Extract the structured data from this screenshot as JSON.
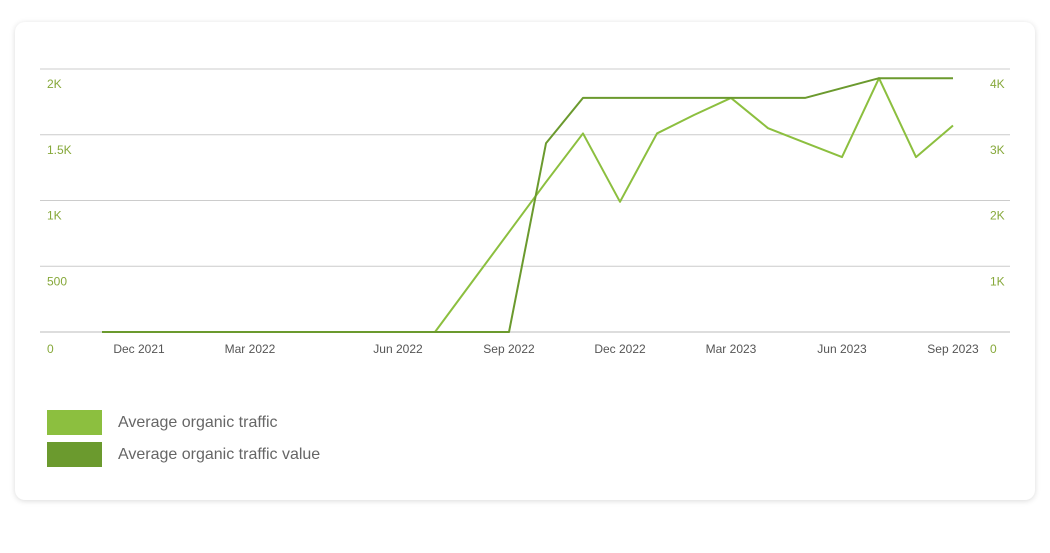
{
  "chart_data": {
    "type": "line",
    "categories": [
      null,
      "Dec 2021",
      null,
      null,
      "Mar 2022",
      null,
      null,
      null,
      "Jun 2022",
      null,
      null,
      "Sep 2022",
      null,
      null,
      "Dec 2022",
      null,
      null,
      "Mar 2023",
      null,
      null,
      "Jun 2023",
      null,
      null,
      "Sep 2023"
    ],
    "series": [
      {
        "name": "Average organic traffic",
        "color": "#8cbf3f",
        "values": [
          0,
          0,
          0,
          0,
          0,
          0,
          0,
          0,
          0,
          0,
          380,
          760,
          1140,
          1510,
          990,
          1510,
          1650,
          1780,
          1550,
          1440,
          1330,
          1930,
          1330,
          1570
        ]
      },
      {
        "name": "Average organic traffic value",
        "color": "#6b9a2e",
        "axis": "y2",
        "values": [
          0,
          0,
          0,
          0,
          0,
          0,
          0,
          0,
          0,
          0,
          0,
          0,
          2870,
          3560,
          3560,
          3560,
          3560,
          3560,
          3560,
          3560,
          3710,
          3860,
          3860,
          3860
        ]
      }
    ],
    "ylim": [
      0,
      2000
    ],
    "yticks": [
      0,
      500,
      {
        "value": 1000,
        "label": "1K"
      },
      {
        "value": 1500,
        "label": "1.5K"
      },
      {
        "value": 2000,
        "label": "2K"
      }
    ],
    "y2lim": [
      0,
      4000
    ],
    "y2ticks": [
      0,
      {
        "value": 1000,
        "label": "1K"
      },
      {
        "value": 2000,
        "label": "2K"
      },
      {
        "value": 3000,
        "label": "3K"
      },
      {
        "value": 4000,
        "label": "4K"
      }
    ],
    "grid": true,
    "legend": "bottom"
  }
}
